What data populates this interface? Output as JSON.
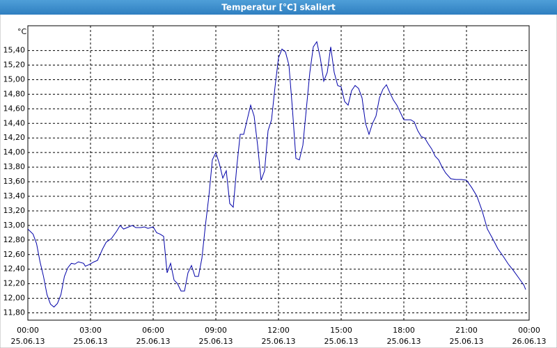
{
  "chart_data": {
    "type": "line",
    "title": "Temperatur [°C] skaliert",
    "y_unit": "°C",
    "grid": true,
    "color": "#0000a8",
    "x": [
      0,
      15,
      25,
      35,
      45,
      55,
      65,
      75,
      85,
      95,
      105,
      115,
      125,
      135,
      145,
      160,
      165,
      175,
      190,
      200,
      215,
      225,
      240,
      255,
      265,
      275,
      290,
      300,
      310,
      325,
      335,
      345,
      360,
      370,
      380,
      390,
      400,
      410,
      420,
      430,
      440,
      450,
      460,
      470,
      480,
      490,
      500,
      510,
      520,
      530,
      540,
      550,
      560,
      570,
      580,
      590,
      600,
      610,
      620,
      630,
      640,
      650,
      660,
      670,
      680,
      690,
      700,
      710,
      720,
      730,
      740,
      750,
      760,
      770,
      780,
      790,
      800,
      810,
      820,
      830,
      840,
      850,
      860,
      870,
      880,
      890,
      900,
      910,
      920,
      930,
      940,
      950,
      960,
      970,
      980,
      990,
      1000,
      1010,
      1020,
      1030,
      1040,
      1050,
      1060,
      1070,
      1080,
      1090,
      1100,
      1110,
      1120,
      1130,
      1140,
      1150,
      1160,
      1170,
      1180,
      1190,
      1200,
      1215,
      1230,
      1245,
      1260,
      1275,
      1290,
      1305,
      1320,
      1335,
      1350,
      1365,
      1380,
      1395,
      1410,
      1425,
      1430
    ],
    "values": [
      12.95,
      12.88,
      12.75,
      12.5,
      12.3,
      12.05,
      11.92,
      11.88,
      11.93,
      12.05,
      12.3,
      12.42,
      12.48,
      12.47,
      12.5,
      12.48,
      12.44,
      12.46,
      12.5,
      12.52,
      12.68,
      12.77,
      12.82,
      12.92,
      13.0,
      12.95,
      12.98,
      13.0,
      12.97,
      12.97,
      12.98,
      12.96,
      12.98,
      12.9,
      12.88,
      12.85,
      12.35,
      12.48,
      12.25,
      12.2,
      12.1,
      12.1,
      12.35,
      12.45,
      12.3,
      12.3,
      12.55,
      13.0,
      13.4,
      13.9,
      14.0,
      13.85,
      13.65,
      13.75,
      13.3,
      13.25,
      13.8,
      14.25,
      14.25,
      14.45,
      14.65,
      14.5,
      14.1,
      13.62,
      13.75,
      14.3,
      14.45,
      14.9,
      15.3,
      15.42,
      15.38,
      15.2,
      14.6,
      13.92,
      13.9,
      14.1,
      14.6,
      15.1,
      15.45,
      15.52,
      15.3,
      14.98,
      15.1,
      15.45,
      15.1,
      14.92,
      14.9,
      14.7,
      14.65,
      14.85,
      14.92,
      14.88,
      14.75,
      14.4,
      14.25,
      14.4,
      14.5,
      14.75,
      14.87,
      14.93,
      14.82,
      14.72,
      14.65,
      14.55,
      14.45,
      14.45,
      14.45,
      14.42,
      14.3,
      14.22,
      14.2,
      14.12,
      14.05,
      13.95,
      13.9,
      13.8,
      13.72,
      13.64,
      13.63,
      13.63,
      13.62,
      13.52,
      13.4,
      13.2,
      12.95,
      12.82,
      12.68,
      12.58,
      12.47,
      12.38,
      12.28,
      12.18,
      12.12
    ],
    "xlim": [
      0,
      1440
    ],
    "ylim": [
      11.7,
      15.74
    ],
    "xticks": [
      {
        "value": 0,
        "label": [
          "00:00",
          "25.06.13"
        ]
      },
      {
        "value": 180,
        "label": [
          "03:00",
          "25.06.13"
        ]
      },
      {
        "value": 360,
        "label": [
          "06:00",
          "25.06.13"
        ]
      },
      {
        "value": 540,
        "label": [
          "09:00",
          "25.06.13"
        ]
      },
      {
        "value": 720,
        "label": [
          "12:00",
          "25.06.13"
        ]
      },
      {
        "value": 900,
        "label": [
          "15:00",
          "25.06.13"
        ]
      },
      {
        "value": 1080,
        "label": [
          "18:00",
          "25.06.13"
        ]
      },
      {
        "value": 1260,
        "label": [
          "21:00",
          "25.06.13"
        ]
      },
      {
        "value": 1440,
        "label": [
          "00:00",
          "26.06.13"
        ]
      }
    ],
    "yticks": [
      {
        "value": 11.8,
        "label": "11,80"
      },
      {
        "value": 12.0,
        "label": "12,00"
      },
      {
        "value": 12.2,
        "label": "12,20"
      },
      {
        "value": 12.4,
        "label": "12,40"
      },
      {
        "value": 12.6,
        "label": "12,60"
      },
      {
        "value": 12.8,
        "label": "12,80"
      },
      {
        "value": 13.0,
        "label": "13,00"
      },
      {
        "value": 13.2,
        "label": "13,20"
      },
      {
        "value": 13.4,
        "label": "13,40"
      },
      {
        "value": 13.6,
        "label": "13,60"
      },
      {
        "value": 13.8,
        "label": "13,80"
      },
      {
        "value": 14.0,
        "label": "14,00"
      },
      {
        "value": 14.2,
        "label": "14,20"
      },
      {
        "value": 14.4,
        "label": "14,40"
      },
      {
        "value": 14.6,
        "label": "14,60"
      },
      {
        "value": 14.8,
        "label": "14,80"
      },
      {
        "value": 15.0,
        "label": "15,00"
      },
      {
        "value": 15.2,
        "label": "15,20"
      },
      {
        "value": 15.4,
        "label": "15,40"
      }
    ]
  }
}
